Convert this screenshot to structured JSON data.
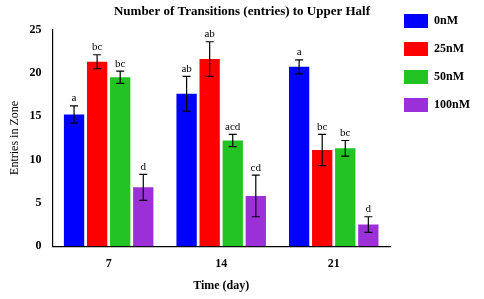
{
  "chart_data": {
    "type": "bar",
    "title": "Number of Transitions (entries) to Upper Half",
    "x_label": "Time (day)",
    "y_label": "Entries in Zone",
    "categories": [
      "7",
      "14",
      "21"
    ],
    "series": [
      {
        "name": "0nM",
        "color": "#0000ff",
        "values": [
          15.2,
          17.6,
          20.7
        ],
        "errors": [
          1.0,
          2.0,
          0.8
        ],
        "annotations": [
          "a",
          "ab",
          "a"
        ]
      },
      {
        "name": "25nM",
        "color": "#ff0000",
        "values": [
          21.3,
          21.6,
          11.1
        ],
        "errors": [
          0.8,
          2.0,
          1.8
        ],
        "annotations": [
          "bc",
          "ab",
          "bc"
        ]
      },
      {
        "name": "50nM",
        "color": "#22c322",
        "values": [
          19.5,
          12.2,
          11.3
        ],
        "errors": [
          0.7,
          0.7,
          0.9
        ],
        "annotations": [
          "bc",
          "acd",
          "bc"
        ]
      },
      {
        "name": "100nM",
        "color": "#9b30d9",
        "values": [
          6.8,
          5.8,
          2.5
        ],
        "errors": [
          1.5,
          2.4,
          0.9
        ],
        "annotations": [
          "d",
          "cd",
          "d"
        ]
      }
    ],
    "ylim": [
      0,
      25
    ],
    "yticks": [
      0,
      5,
      10,
      15,
      20,
      25
    ],
    "grid": false,
    "legend": "right"
  }
}
